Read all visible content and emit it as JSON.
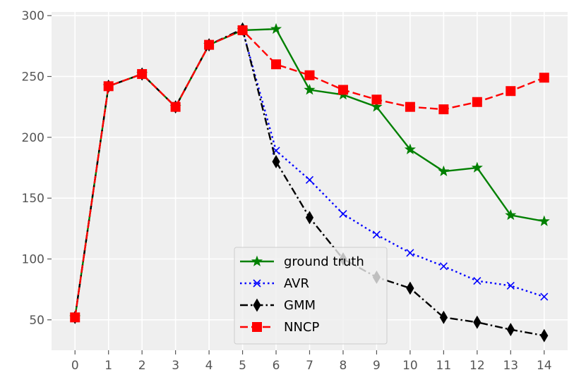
{
  "chart_data": {
    "type": "line",
    "title": "",
    "xlabel": "",
    "ylabel": "",
    "x": [
      0,
      1,
      2,
      3,
      4,
      5,
      6,
      7,
      8,
      9,
      10,
      11,
      12,
      13,
      14
    ],
    "xlim": [
      -0.7,
      14.7
    ],
    "ylim": [
      25,
      303
    ],
    "xticks": [
      0,
      1,
      2,
      3,
      4,
      5,
      6,
      7,
      8,
      9,
      10,
      11,
      12,
      13,
      14
    ],
    "yticks": [
      50,
      100,
      150,
      200,
      250,
      300
    ],
    "grid": true,
    "legend_position": "lower center",
    "background": "#efefef",
    "series": [
      {
        "name": "ground truth",
        "color": "#008000",
        "line_style": "solid",
        "marker": "star",
        "x": [
          0,
          1,
          2,
          3,
          4,
          5,
          6,
          7,
          8,
          9,
          10,
          11,
          12,
          13,
          14
        ],
        "values": [
          52,
          242,
          252,
          225,
          276,
          288,
          289,
          239,
          235,
          225,
          190,
          172,
          175,
          136,
          131
        ]
      },
      {
        "name": "AVR",
        "color": "#0000ff",
        "line_style": "dotted",
        "marker": "x",
        "x": [
          5,
          6,
          7,
          8,
          9,
          10,
          11,
          12,
          13,
          14
        ],
        "values": [
          288,
          189,
          165,
          137,
          120,
          105,
          94,
          82,
          78,
          69
        ]
      },
      {
        "name": "GMM",
        "color": "#000000",
        "line_style": "dashdot",
        "marker": "thin_diamond",
        "x": [
          0,
          1,
          2,
          3,
          4,
          5,
          6,
          7,
          8,
          9,
          10,
          11,
          12,
          13,
          14
        ],
        "values": [
          52,
          242,
          252,
          225,
          276,
          289,
          180,
          134,
          100,
          85,
          76,
          52,
          48,
          42,
          37
        ]
      },
      {
        "name": "NNCP",
        "color": "#ff0000",
        "line_style": "dashed",
        "marker": "square",
        "x": [
          0,
          1,
          2,
          3,
          4,
          5,
          6,
          7,
          8,
          9,
          10,
          11,
          12,
          13,
          14
        ],
        "values": [
          52,
          242,
          252,
          225,
          276,
          288,
          260,
          251,
          239,
          231,
          225,
          223,
          229,
          238,
          249
        ]
      }
    ]
  }
}
